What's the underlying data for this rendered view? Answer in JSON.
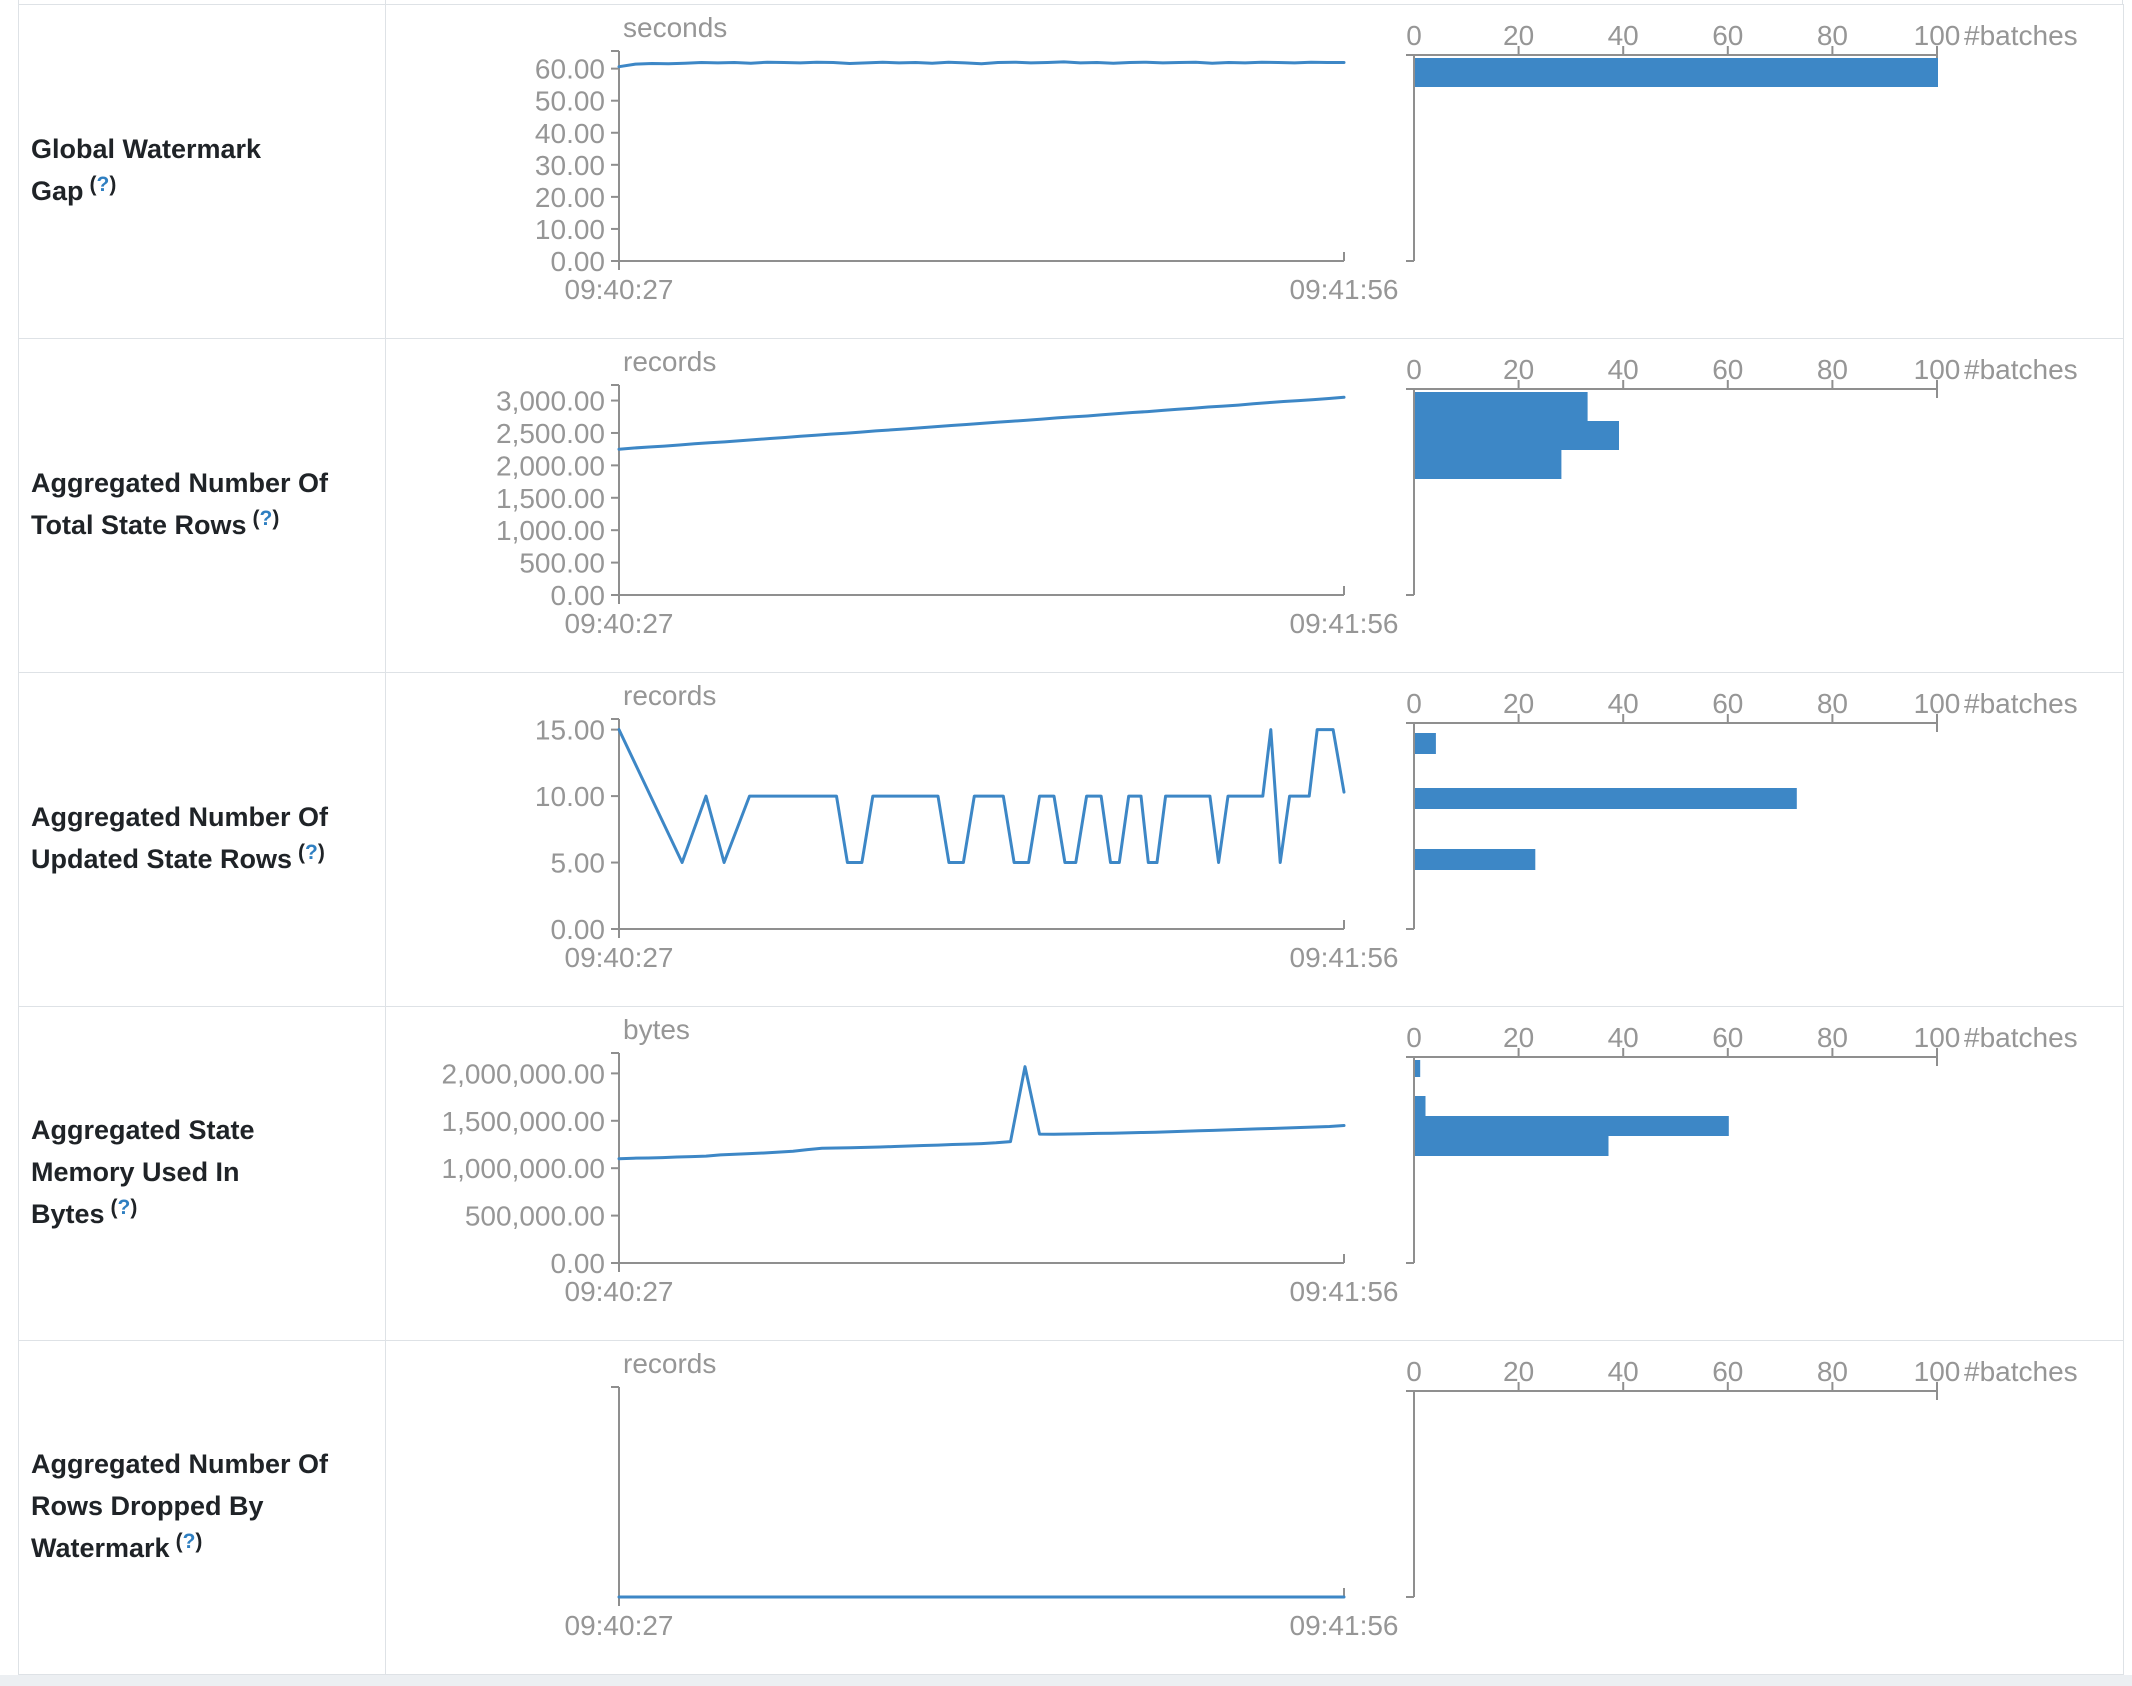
{
  "colors": {
    "accent": "#3d87c6",
    "axis_line": "#8f8f8f",
    "tick_text": "#969696",
    "label_text": "#1f2327",
    "help_blue": "#2f7fc1",
    "border": "#dee2e6",
    "bottom_strip": "#eceff2"
  },
  "rows": [
    {
      "label": "Global Watermark Gap",
      "help_prefix": "(",
      "help_q": "?",
      "help_suffix": ")"
    },
    {
      "label": "Aggregated Number Of Total State Rows",
      "help_prefix": "(",
      "help_q": "?",
      "help_suffix": ")"
    },
    {
      "label": "Aggregated Number Of Updated State Rows",
      "help_prefix": "(",
      "help_q": "?",
      "help_suffix": ")"
    },
    {
      "label": "Aggregated State Memory Used In Bytes",
      "help_prefix": "(",
      "help_q": "?",
      "help_suffix": ")"
    },
    {
      "label": "Aggregated Number Of Rows Dropped By Watermark",
      "help_prefix": "(",
      "help_q": "?",
      "help_suffix": ")"
    }
  ],
  "chart_data": [
    {
      "metric": "Global Watermark Gap",
      "timeline": {
        "type": "line",
        "unit": "seconds",
        "x_start": "09:40:27",
        "x_end": "09:41:56",
        "ymax": 65.5,
        "yticks": [
          {
            "value": 60,
            "label": "60.00"
          },
          {
            "value": 50,
            "label": "50.00"
          },
          {
            "value": 40,
            "label": "40.00"
          },
          {
            "value": 30,
            "label": "30.00"
          },
          {
            "value": 20,
            "label": "20.00"
          },
          {
            "value": 10,
            "label": "10.00"
          },
          {
            "value": 0,
            "label": "0.00"
          }
        ],
        "values": [
          60.6,
          61.4,
          61.6,
          61.5,
          61.7,
          61.9,
          61.8,
          61.9,
          61.7,
          62,
          61.9,
          61.8,
          62,
          61.9,
          61.6,
          61.8,
          62,
          61.8,
          61.9,
          61.7,
          62,
          61.8,
          61.5,
          61.9,
          62,
          61.8,
          61.9,
          62.1,
          61.8,
          61.9,
          61.7,
          61.9,
          62,
          61.8,
          61.9,
          62,
          61.7,
          61.9,
          61.8,
          62,
          61.9,
          61.8,
          62,
          61.9,
          61.9
        ]
      },
      "histogram": {
        "type": "bar",
        "xlabel": "#batches",
        "xticks": [
          0,
          20,
          40,
          60,
          80,
          100
        ],
        "xlim": [
          0,
          100
        ],
        "bars": [
          {
            "count": 100,
            "top": 53,
            "h": 29
          }
        ]
      }
    },
    {
      "metric": "Aggregated Number Of Total State Rows",
      "timeline": {
        "type": "line",
        "unit": "records",
        "x_start": "09:40:27",
        "x_end": "09:41:56",
        "ymax": 3240,
        "yticks": [
          {
            "value": 3000,
            "label": "3,000.00"
          },
          {
            "value": 2500,
            "label": "2,500.00"
          },
          {
            "value": 2000,
            "label": "2,000.00"
          },
          {
            "value": 1500,
            "label": "1,500.00"
          },
          {
            "value": 1000,
            "label": "1,000.00"
          },
          {
            "value": 500,
            "label": "500.00"
          },
          {
            "value": 0,
            "label": "0.00"
          }
        ],
        "values": [
          2250,
          2268,
          2284,
          2297,
          2315,
          2333,
          2348,
          2362,
          2380,
          2398,
          2415,
          2430,
          2448,
          2466,
          2482,
          2496,
          2514,
          2532,
          2548,
          2562,
          2580,
          2598,
          2615,
          2630,
          2648,
          2666,
          2682,
          2696,
          2714,
          2732,
          2748,
          2762,
          2780,
          2798,
          2815,
          2830,
          2848,
          2866,
          2882,
          2900,
          2915,
          2930,
          2950,
          2968,
          2985,
          3000,
          3015,
          3032,
          3050
        ]
      },
      "histogram": {
        "type": "bar",
        "xlabel": "#batches",
        "xticks": [
          0,
          20,
          40,
          60,
          80,
          100
        ],
        "xlim": [
          0,
          100
        ],
        "bars": [
          {
            "count": 33,
            "top": 53,
            "h": 29
          },
          {
            "count": 39,
            "top": 82,
            "h": 29
          },
          {
            "count": 28,
            "top": 111,
            "h": 29
          }
        ]
      }
    },
    {
      "metric": "Aggregated Number Of Updated State Rows",
      "timeline": {
        "type": "line",
        "unit": "records",
        "x_start": "09:40:27",
        "x_end": "09:41:56",
        "ymax": 15.8,
        "yticks": [
          {
            "value": 15,
            "label": "15.00"
          },
          {
            "value": 10,
            "label": "10.00"
          },
          {
            "value": 5,
            "label": "5.00"
          },
          {
            "value": 0,
            "label": "0.00"
          }
        ],
        "points": [
          [
            0,
            15
          ],
          [
            0.087,
            5
          ],
          [
            0.12,
            10
          ],
          [
            0.145,
            5
          ],
          [
            0.18,
            10
          ],
          [
            0.3,
            10
          ],
          [
            0.315,
            5
          ],
          [
            0.335,
            5
          ],
          [
            0.35,
            10
          ],
          [
            0.44,
            10
          ],
          [
            0.455,
            5
          ],
          [
            0.475,
            5
          ],
          [
            0.49,
            10
          ],
          [
            0.53,
            10
          ],
          [
            0.545,
            5
          ],
          [
            0.565,
            5
          ],
          [
            0.58,
            10
          ],
          [
            0.6,
            10
          ],
          [
            0.615,
            5
          ],
          [
            0.63,
            5
          ],
          [
            0.645,
            10
          ],
          [
            0.665,
            10
          ],
          [
            0.678,
            5
          ],
          [
            0.69,
            5
          ],
          [
            0.703,
            10
          ],
          [
            0.72,
            10
          ],
          [
            0.73,
            5
          ],
          [
            0.742,
            5
          ],
          [
            0.754,
            10
          ],
          [
            0.815,
            10
          ],
          [
            0.827,
            5
          ],
          [
            0.84,
            10
          ],
          [
            0.888,
            10
          ],
          [
            0.899,
            15
          ],
          [
            0.912,
            5
          ],
          [
            0.925,
            10
          ],
          [
            0.952,
            10
          ],
          [
            0.963,
            15
          ],
          [
            0.985,
            15
          ],
          [
            1,
            10.3
          ]
        ]
      },
      "histogram": {
        "type": "bar",
        "xlabel": "#batches",
        "xticks": [
          0,
          20,
          40,
          60,
          80,
          100
        ],
        "xlim": [
          0,
          100
        ],
        "bars": [
          {
            "count": 4,
            "top": 60,
            "h": 21
          },
          {
            "count": 73,
            "top": 115,
            "h": 21
          },
          {
            "count": 23,
            "top": 176,
            "h": 21
          }
        ]
      }
    },
    {
      "metric": "Aggregated State Memory Used In Bytes",
      "timeline": {
        "type": "line",
        "unit": "bytes",
        "x_start": "09:40:27",
        "x_end": "09:41:56",
        "ymax": 2215000,
        "yticks": [
          {
            "value": 2000000,
            "label": "2,000,000.00"
          },
          {
            "value": 1500000,
            "label": "1,500,000.00"
          },
          {
            "value": 1000000,
            "label": "1,000,000.00"
          },
          {
            "value": 500000,
            "label": "500,000.00"
          },
          {
            "value": 0,
            "label": "0.00"
          }
        ],
        "values": [
          1100000,
          1105000,
          1108000,
          1112000,
          1118000,
          1122000,
          1128000,
          1140000,
          1148000,
          1154000,
          1160000,
          1170000,
          1178000,
          1196000,
          1210000,
          1213000,
          1215000,
          1219000,
          1224000,
          1229000,
          1234000,
          1239000,
          1244000,
          1250000,
          1254000,
          1259000,
          1268000,
          1280000,
          2070000,
          1360000,
          1358000,
          1361000,
          1364000,
          1367000,
          1369000,
          1372000,
          1376000,
          1380000,
          1384000,
          1389000,
          1394000,
          1399000,
          1404000,
          1409000,
          1414000,
          1419000,
          1424000,
          1429000,
          1434000,
          1440000,
          1450000
        ]
      },
      "histogram": {
        "type": "bar",
        "xlabel": "#batches",
        "xticks": [
          0,
          20,
          40,
          60,
          80,
          100
        ],
        "xlim": [
          0,
          100
        ],
        "bars": [
          {
            "count": 1,
            "top": 53,
            "h": 17
          },
          {
            "count": 2,
            "top": 89,
            "h": 20
          },
          {
            "count": 60,
            "top": 109,
            "h": 20
          },
          {
            "count": 37,
            "top": 129,
            "h": 20
          }
        ]
      }
    },
    {
      "metric": "Aggregated Number Of Rows Dropped By Watermark",
      "timeline": {
        "type": "line",
        "unit": "records",
        "x_start": "09:40:27",
        "x_end": "09:41:56",
        "ymax": 1,
        "yticks": [],
        "values": [
          0,
          0
        ]
      },
      "histogram": {
        "type": "bar",
        "xlabel": "#batches",
        "xticks": [
          0,
          20,
          40,
          60,
          80,
          100
        ],
        "xlim": [
          0,
          100
        ],
        "bars": []
      }
    }
  ]
}
